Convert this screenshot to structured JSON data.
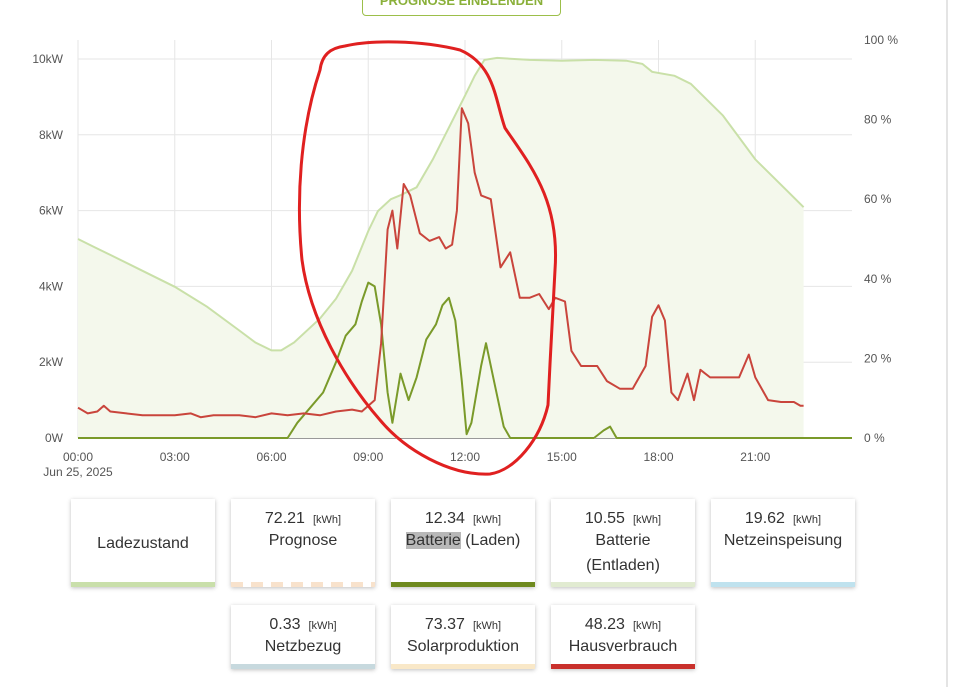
{
  "header": {
    "forecast_button_label": "PROGNOSE EINBLENDEN"
  },
  "chart_data": {
    "type": "line",
    "x_ticks": [
      "00:00",
      "03:00",
      "06:00",
      "09:00",
      "12:00",
      "15:00",
      "18:00",
      "21:00"
    ],
    "x_date_label": "Jun 25, 2025",
    "y_left_ticks": [
      "0W",
      "2kW",
      "4kW",
      "6kW",
      "8kW",
      "10kW"
    ],
    "y_right_ticks": [
      "0 %",
      "20 %",
      "40 %",
      "60 %",
      "80 %",
      "100 %"
    ],
    "y_left_range_kw": [
      0,
      10.5
    ],
    "y_right_range_percent": [
      0,
      100
    ],
    "x_range_hours": [
      0,
      24
    ],
    "grid": true,
    "series": [
      {
        "name": "Ladezustand",
        "axis": "right",
        "unit": "%",
        "color": "#c9e0a8",
        "fill": "#f4f8ec",
        "points": [
          [
            0,
            50
          ],
          [
            0.5,
            48
          ],
          [
            1,
            46
          ],
          [
            2,
            42
          ],
          [
            3,
            38
          ],
          [
            4,
            33
          ],
          [
            5,
            27
          ],
          [
            5.5,
            24
          ],
          [
            6,
            22
          ],
          [
            6.3,
            22
          ],
          [
            6.7,
            24
          ],
          [
            7.5,
            30
          ],
          [
            8,
            35
          ],
          [
            8.5,
            42
          ],
          [
            9,
            52
          ],
          [
            9.3,
            57
          ],
          [
            9.7,
            60
          ],
          [
            10,
            61
          ],
          [
            10.5,
            63
          ],
          [
            11,
            70
          ],
          [
            11.5,
            78
          ],
          [
            12,
            86
          ],
          [
            12.3,
            91
          ],
          [
            12.6,
            95
          ],
          [
            13,
            95.5
          ],
          [
            14,
            95
          ],
          [
            15,
            94.8
          ],
          [
            16,
            95
          ],
          [
            17,
            94.8
          ],
          [
            17.5,
            94
          ],
          [
            17.8,
            92
          ],
          [
            18.5,
            91
          ],
          [
            19,
            89
          ],
          [
            20,
            81
          ],
          [
            21,
            70
          ],
          [
            22,
            62
          ],
          [
            22.5,
            58
          ]
        ]
      },
      {
        "name": "Batterie (Laden)",
        "axis": "left",
        "unit": "kW",
        "color": "#7a9a2a",
        "points": [
          [
            0,
            0
          ],
          [
            6.5,
            0
          ],
          [
            6.8,
            0.4
          ],
          [
            7.2,
            0.8
          ],
          [
            7.6,
            1.2
          ],
          [
            8,
            2.0
          ],
          [
            8.3,
            2.7
          ],
          [
            8.6,
            3.0
          ],
          [
            8.8,
            3.6
          ],
          [
            9.0,
            4.1
          ],
          [
            9.2,
            4.0
          ],
          [
            9.4,
            3.0
          ],
          [
            9.6,
            1.2
          ],
          [
            9.75,
            0.4
          ],
          [
            10.0,
            1.7
          ],
          [
            10.25,
            1.0
          ],
          [
            10.5,
            1.6
          ],
          [
            10.8,
            2.6
          ],
          [
            11.1,
            3.0
          ],
          [
            11.3,
            3.5
          ],
          [
            11.5,
            3.7
          ],
          [
            11.7,
            3.1
          ],
          [
            11.9,
            1.5
          ],
          [
            12.05,
            0.1
          ],
          [
            12.2,
            0.4
          ],
          [
            12.5,
            1.9
          ],
          [
            12.65,
            2.5
          ],
          [
            12.9,
            1.5
          ],
          [
            13.2,
            0.3
          ],
          [
            13.4,
            0
          ],
          [
            16.0,
            0
          ],
          [
            16.3,
            0.2
          ],
          [
            16.5,
            0.3
          ],
          [
            16.7,
            0
          ],
          [
            24,
            0
          ]
        ]
      },
      {
        "name": "Hausverbrauch",
        "axis": "left",
        "unit": "kW",
        "color": "#c9453c",
        "points": [
          [
            0,
            0.8
          ],
          [
            0.3,
            0.65
          ],
          [
            0.6,
            0.7
          ],
          [
            0.8,
            0.85
          ],
          [
            1.0,
            0.7
          ],
          [
            1.5,
            0.65
          ],
          [
            2,
            0.6
          ],
          [
            3,
            0.6
          ],
          [
            3.5,
            0.65
          ],
          [
            3.8,
            0.55
          ],
          [
            4.2,
            0.6
          ],
          [
            5,
            0.6
          ],
          [
            5.5,
            0.55
          ],
          [
            6,
            0.65
          ],
          [
            6.5,
            0.6
          ],
          [
            7,
            0.65
          ],
          [
            7.5,
            0.6
          ],
          [
            8,
            0.7
          ],
          [
            8.5,
            0.75
          ],
          [
            8.8,
            0.7
          ],
          [
            9.2,
            1.0
          ],
          [
            9.4,
            2.5
          ],
          [
            9.6,
            5.5
          ],
          [
            9.75,
            6.0
          ],
          [
            9.9,
            5.0
          ],
          [
            10.1,
            6.7
          ],
          [
            10.3,
            6.4
          ],
          [
            10.6,
            5.4
          ],
          [
            10.9,
            5.2
          ],
          [
            11.2,
            5.3
          ],
          [
            11.4,
            5.0
          ],
          [
            11.6,
            5.1
          ],
          [
            11.75,
            6.0
          ],
          [
            11.9,
            8.7
          ],
          [
            12.1,
            8.3
          ],
          [
            12.3,
            7.0
          ],
          [
            12.5,
            6.4
          ],
          [
            12.8,
            6.3
          ],
          [
            13.1,
            4.5
          ],
          [
            13.4,
            4.9
          ],
          [
            13.7,
            3.7
          ],
          [
            14.0,
            3.7
          ],
          [
            14.3,
            3.8
          ],
          [
            14.6,
            3.4
          ],
          [
            14.8,
            3.7
          ],
          [
            15.1,
            3.6
          ],
          [
            15.3,
            2.3
          ],
          [
            15.6,
            1.9
          ],
          [
            16.1,
            1.9
          ],
          [
            16.4,
            1.5
          ],
          [
            16.8,
            1.3
          ],
          [
            17.2,
            1.3
          ],
          [
            17.6,
            1.9
          ],
          [
            17.8,
            3.2
          ],
          [
            18.0,
            3.5
          ],
          [
            18.2,
            3.1
          ],
          [
            18.4,
            1.2
          ],
          [
            18.6,
            1.0
          ],
          [
            18.9,
            1.7
          ],
          [
            19.1,
            1.0
          ],
          [
            19.3,
            1.8
          ],
          [
            19.6,
            1.6
          ],
          [
            20.2,
            1.6
          ],
          [
            20.5,
            1.6
          ],
          [
            20.8,
            2.2
          ],
          [
            21.0,
            1.6
          ],
          [
            21.4,
            1.0
          ],
          [
            21.8,
            0.95
          ],
          [
            22.2,
            0.95
          ],
          [
            22.4,
            0.85
          ],
          [
            22.5,
            0.85
          ]
        ]
      }
    ],
    "annotation": {
      "type": "hand-drawn ellipse",
      "color": "#e02020"
    }
  },
  "cards": [
    {
      "value": "",
      "unit": "",
      "label": "Ladezustand",
      "label2": "",
      "bar": "#c9dfaa",
      "bar_style": "solid"
    },
    {
      "value": "72.21",
      "unit": "[kWh]",
      "label": "Prognose",
      "label2": "",
      "bar": "#f8e2cc",
      "bar_style": "dashed"
    },
    {
      "value": "12.34",
      "unit": "[kWh]",
      "label_highlight": "Batterie",
      "label": " (Laden)",
      "label2": "",
      "bar": "#6f8a1f",
      "bar_style": "solid"
    },
    {
      "value": "10.55",
      "unit": "[kWh]",
      "label": "Batterie",
      "label2": "(Entladen)",
      "bar": "#e1ebd1",
      "bar_style": "solid"
    },
    {
      "value": "19.62",
      "unit": "[kWh]",
      "label": "Netzeinspeisung",
      "label2": "",
      "bar": "#bfe2ee",
      "bar_style": "solid"
    },
    {
      "value": "0.33",
      "unit": "[kWh]",
      "label": "Netzbezug",
      "label2": "",
      "bar": "#c7d9de",
      "bar_style": "solid"
    },
    {
      "value": "73.37",
      "unit": "[kWh]",
      "label": "Solarproduktion",
      "label2": "",
      "bar": "#f9e8c8",
      "bar_style": "solid"
    },
    {
      "value": "48.23",
      "unit": "[kWh]",
      "label": "Hausverbrauch",
      "label2": "",
      "bar": "#c9302c",
      "bar_style": "solid"
    }
  ]
}
